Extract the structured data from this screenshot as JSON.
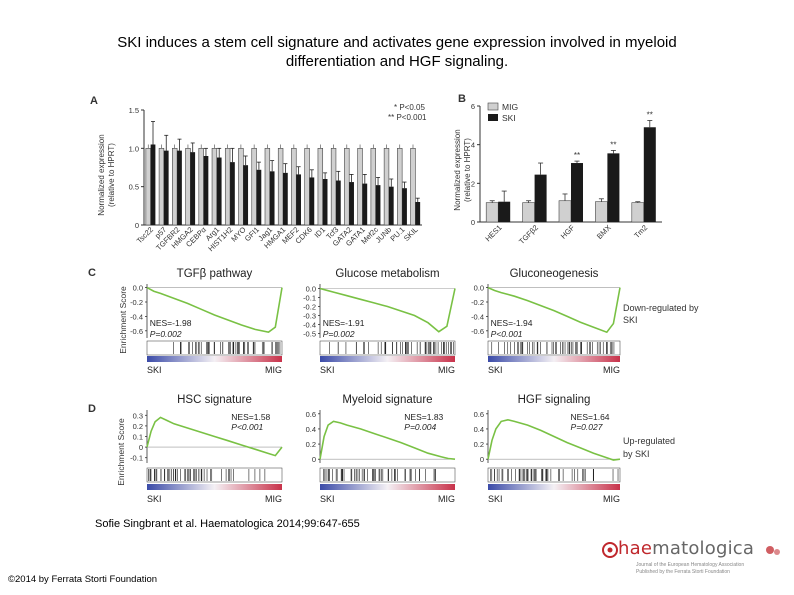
{
  "slide": {
    "title_line1": "SKI induces a stem cell signature and activates gene expression involved in myeloid",
    "title_line2": "differentiation and HGF signaling.",
    "citation": "Sofie Singbrant et al. Haematologica 2014;99:647-655",
    "copyright": "©2014 by Ferrata Storti Foundation",
    "logo": {
      "name_red": "hae",
      "name_rest": "matologica",
      "sub1": "Journal of the European Hematology Association",
      "sub2": "Published by the Ferrata Storti Foundation"
    }
  },
  "panels": {
    "A": {
      "label": "A",
      "ylabel1": "Normalized expression",
      "ylabel2": "(relative to HPRT)",
      "sig1": "* P<0.05",
      "sig2": "** P<0.001"
    },
    "B": {
      "label": "B",
      "ylabel1": "Normalized expression",
      "ylabel2": "(relative to HPRT)",
      "legend": [
        "MIG",
        "SKI"
      ]
    },
    "C": {
      "label": "C",
      "ylabel": "Enrichment Score",
      "gsea": [
        {
          "title": "TGFβ pathway",
          "nes": "NES=-1.98",
          "p": "P=0.002"
        },
        {
          "title": "Glucose metabolism",
          "nes": "NES=-1.91",
          "p": "P=0.002"
        },
        {
          "title": "Gluconeogenesis",
          "nes": "NES=-1.94",
          "p": "P<0.001"
        }
      ],
      "side_label1": "Down-regulated by",
      "side_label2": "SKI"
    },
    "D": {
      "label": "D",
      "ylabel": "Enrichment Score",
      "gsea": [
        {
          "title": "HSC signature",
          "nes": "NES=1.58",
          "p": "P<0.001"
        },
        {
          "title": "Myeloid signature",
          "nes": "NES=1.83",
          "p": "P=0.004"
        },
        {
          "title": "HGF signaling",
          "nes": "NES=1.64",
          "p": "P=0.027"
        }
      ],
      "side_label1": "Up-regulated",
      "side_label2": "by SKI"
    },
    "axis_ends": {
      "left": "SKI",
      "right": "MIG"
    }
  },
  "colors": {
    "mig": "#d0d0d0",
    "ski": "#1a1a1a",
    "gsea_line": "#79c144",
    "blue": "#3b4ba8",
    "red": "#c8324a"
  },
  "chart_data": [
    {
      "type": "bar",
      "panel": "A",
      "categories": [
        "Tsc22",
        "p57",
        "TGFBR2",
        "HMGA2",
        "CEBPα",
        "Arg1",
        "HIST1H2",
        "MYO",
        "GFI1",
        "Jag1",
        "HMGA1",
        "MEF2",
        "CDK6",
        "ID1",
        "Tcf3",
        "GATA2",
        "GATA1",
        "Mef2c",
        "JUNb",
        "PU.1",
        "SKIL"
      ],
      "series": [
        {
          "name": "MIG",
          "values": [
            1.0,
            1.0,
            1.0,
            1.0,
            1.0,
            1.0,
            1.0,
            1.0,
            1.0,
            1.0,
            1.0,
            1.0,
            1.0,
            1.0,
            1.0,
            1.0,
            1.0,
            1.0,
            1.0,
            1.0,
            1.0
          ]
        },
        {
          "name": "SKI",
          "values": [
            1.05,
            0.97,
            0.97,
            0.95,
            0.9,
            0.88,
            0.82,
            0.78,
            0.72,
            0.7,
            0.68,
            0.66,
            0.62,
            0.6,
            0.58,
            0.56,
            0.54,
            0.52,
            0.5,
            0.48,
            0.3
          ]
        }
      ],
      "errors": {
        "SKI": [
          0.3,
          0.2,
          0.15,
          0.12,
          0.1,
          0.12,
          0.18,
          0.12,
          0.1,
          0.14,
          0.12,
          0.1,
          0.1,
          0.08,
          0.12,
          0.1,
          0.12,
          0.1,
          0.1,
          0.08,
          0.05
        ]
      },
      "ylim": [
        0,
        1.5
      ],
      "yticks": [
        "0",
        "0.5",
        "1.0",
        "1.5"
      ]
    },
    {
      "type": "bar",
      "panel": "B",
      "categories": [
        "HES1",
        "TGFβ2",
        "HGF",
        "BMX",
        "Tm2"
      ],
      "series": [
        {
          "name": "MIG",
          "values": [
            1.0,
            1.0,
            1.1,
            1.05,
            1.0
          ]
        },
        {
          "name": "SKI",
          "values": [
            1.05,
            2.45,
            3.05,
            3.55,
            4.9
          ]
        }
      ],
      "errors": {
        "MIG": [
          0.1,
          0.1,
          0.35,
          0.15,
          0.05
        ],
        "SKI": [
          0.55,
          0.6,
          0.1,
          0.15,
          0.35
        ]
      },
      "significance": [
        "",
        "",
        "**",
        "**",
        "**"
      ],
      "ylim": [
        0,
        6
      ],
      "yticks": [
        "0",
        "2",
        "4",
        "6"
      ]
    },
    {
      "type": "line",
      "panel": "C1",
      "title": "TGFβ pathway",
      "yticks": [
        "0.0",
        "-0.2",
        "-0.4",
        "-0.6"
      ],
      "ylim": [
        -0.7,
        0.05
      ],
      "x": [
        0,
        0.05,
        0.1,
        0.2,
        0.3,
        0.4,
        0.5,
        0.6,
        0.7,
        0.8,
        0.9,
        0.95,
        1.0
      ],
      "y": [
        0,
        -0.05,
        -0.08,
        -0.15,
        -0.22,
        -0.3,
        -0.38,
        -0.45,
        -0.52,
        -0.58,
        -0.62,
        -0.55,
        0
      ]
    },
    {
      "type": "line",
      "panel": "C2",
      "title": "Glucose metabolism",
      "yticks": [
        "0.0",
        "-0.1",
        "-0.2",
        "-0.3",
        "-0.4",
        "-0.5"
      ],
      "ylim": [
        -0.55,
        0.05
      ],
      "x": [
        0,
        0.05,
        0.1,
        0.2,
        0.3,
        0.4,
        0.5,
        0.6,
        0.7,
        0.8,
        0.88,
        0.94,
        1.0
      ],
      "y": [
        0,
        -0.02,
        -0.04,
        -0.08,
        -0.12,
        -0.16,
        -0.2,
        -0.25,
        -0.3,
        -0.38,
        -0.48,
        -0.42,
        0
      ]
    },
    {
      "type": "line",
      "panel": "C3",
      "title": "Gluconeogenesis",
      "yticks": [
        "0.0",
        "-0.2",
        "-0.4",
        "-0.6"
      ],
      "ylim": [
        -0.7,
        0.05
      ],
      "x": [
        0,
        0.05,
        0.1,
        0.2,
        0.3,
        0.4,
        0.5,
        0.6,
        0.7,
        0.8,
        0.9,
        0.95,
        1.0
      ],
      "y": [
        0,
        -0.04,
        -0.07,
        -0.12,
        -0.18,
        -0.25,
        -0.32,
        -0.4,
        -0.48,
        -0.55,
        -0.62,
        -0.5,
        0
      ]
    },
    {
      "type": "line",
      "panel": "D1",
      "title": "HSC signature",
      "yticks": [
        "0.3",
        "0.2",
        "0.1",
        "0",
        "-0.1"
      ],
      "ylim": [
        -0.15,
        0.35
      ],
      "x": [
        0,
        0.03,
        0.06,
        0.1,
        0.15,
        0.2,
        0.3,
        0.4,
        0.5,
        0.6,
        0.7,
        0.8,
        0.9,
        0.95,
        1.0
      ],
      "y": [
        0,
        0.15,
        0.24,
        0.28,
        0.25,
        0.22,
        0.18,
        0.14,
        0.1,
        0.06,
        0.02,
        -0.02,
        -0.06,
        -0.08,
        0
      ]
    },
    {
      "type": "line",
      "panel": "D2",
      "title": "Myeloid signature",
      "yticks": [
        "0.6",
        "0.4",
        "0.2",
        "0"
      ],
      "ylim": [
        -0.05,
        0.65
      ],
      "x": [
        0,
        0.03,
        0.06,
        0.1,
        0.15,
        0.2,
        0.3,
        0.4,
        0.5,
        0.6,
        0.7,
        0.8,
        0.9,
        0.95,
        1.0
      ],
      "y": [
        0,
        0.3,
        0.45,
        0.5,
        0.48,
        0.45,
        0.4,
        0.34,
        0.28,
        0.22,
        0.15,
        0.08,
        0.03,
        0.01,
        0
      ]
    },
    {
      "type": "line",
      "panel": "D3",
      "title": "HGF signaling",
      "yticks": [
        "0.6",
        "0.4",
        "0.2",
        "0"
      ],
      "ylim": [
        -0.05,
        0.65
      ],
      "x": [
        0,
        0.03,
        0.06,
        0.1,
        0.15,
        0.2,
        0.3,
        0.4,
        0.5,
        0.6,
        0.7,
        0.8,
        0.9,
        0.95,
        1.0
      ],
      "y": [
        0,
        0.25,
        0.4,
        0.5,
        0.52,
        0.5,
        0.45,
        0.38,
        0.3,
        0.22,
        0.15,
        0.08,
        0.02,
        -0.01,
        0
      ]
    }
  ]
}
